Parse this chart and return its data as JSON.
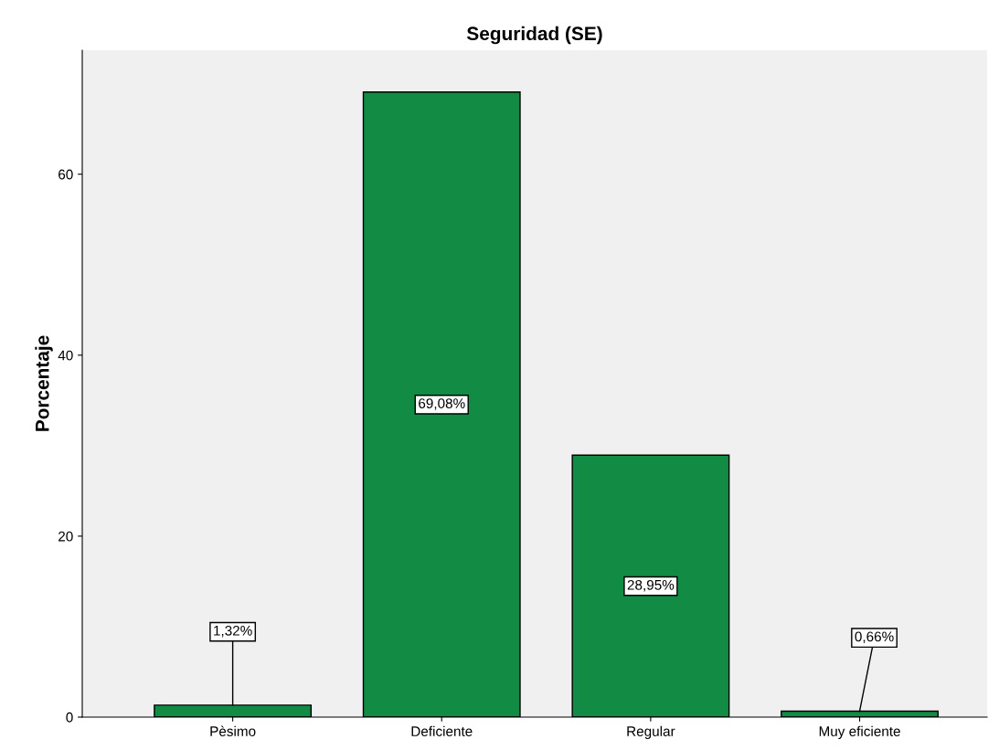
{
  "chart_data": {
    "type": "bar",
    "title": "Seguridad (SE)",
    "ylabel": "Porcentaje",
    "categories": [
      "Pèsimo",
      "Deficiente",
      "Regular",
      "Muy eficiente"
    ],
    "values": [
      1.32,
      69.08,
      28.95,
      0.66
    ],
    "value_labels": [
      "1,32%",
      "69,08%",
      "28,95%",
      "0,66%"
    ],
    "color": "#128c45",
    "ylim": [
      0,
      73.7
    ],
    "yticks": [
      0,
      20,
      40,
      60
    ],
    "grid": false,
    "legend": false
  }
}
